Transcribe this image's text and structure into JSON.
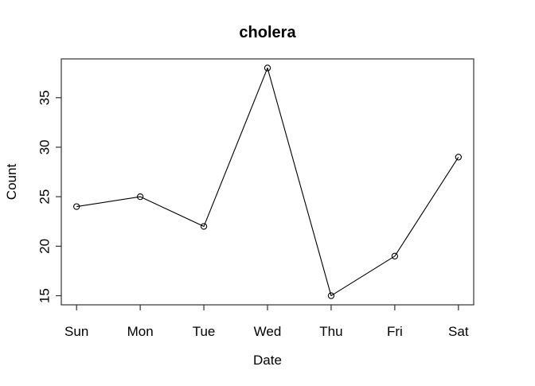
{
  "chart_data": {
    "type": "line",
    "title": "cholera",
    "xlabel": "Date",
    "ylabel": "Count",
    "categories": [
      "Sun",
      "Mon",
      "Tue",
      "Wed",
      "Thu",
      "Fri",
      "Sat"
    ],
    "values": [
      24,
      25,
      22,
      38,
      15,
      19,
      29
    ],
    "yticks": [
      15,
      20,
      25,
      30,
      35
    ],
    "ylim": [
      14.08,
      38.92
    ],
    "x_expansion": 0.04,
    "marker": "open-circle",
    "grid": "off",
    "legend": "none",
    "line_color": "#000000",
    "axis_color": "#333333",
    "text_color": "#000000",
    "background": "#ffffff"
  }
}
